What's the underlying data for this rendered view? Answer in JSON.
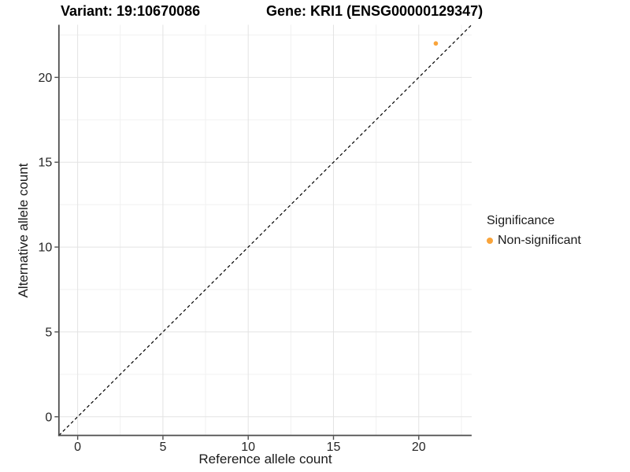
{
  "chart_data": {
    "type": "scatter",
    "title_left": "Variant: 19:10670086",
    "title_right": "Gene: KRI1 (ENSG00000129347)",
    "xlabel": "Reference allele count",
    "ylabel": "Alternative allele count",
    "x_ticks": [
      0,
      5,
      10,
      15,
      20
    ],
    "y_ticks": [
      0,
      5,
      10,
      15,
      20
    ],
    "minor_step": 2.5,
    "xlim": [
      -1.1,
      23.1
    ],
    "ylim": [
      -1.1,
      23.1
    ],
    "grid": "major+minor",
    "reference_line": {
      "type": "identity",
      "slope": 1,
      "intercept": 0,
      "style": "dashed"
    },
    "series": [
      {
        "name": "Non-significant",
        "color": "#F9A43B",
        "points": [
          {
            "x": 21,
            "y": 22
          }
        ]
      }
    ],
    "legend": {
      "title": "Significance",
      "position": "right",
      "items": [
        {
          "label": "Non-significant",
          "color": "#F9A43B",
          "marker": "circle"
        }
      ]
    }
  },
  "colors": {
    "background": "#FFFFFF",
    "grid_major": "#E3E3E3",
    "grid_minor": "#F1F1F1",
    "axis_line": "#4D4D4D",
    "tick_text": "#262626",
    "dashed_line": "#000000"
  }
}
